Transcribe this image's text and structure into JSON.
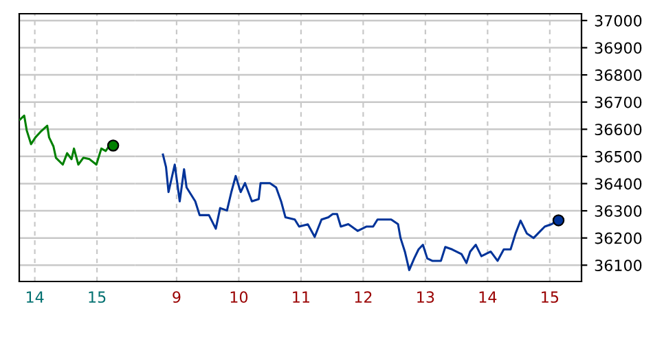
{
  "chart_data": [
    {
      "type": "line",
      "series": [
        {
          "color": "#008000",
          "x": [
            13.76,
            13.83,
            13.87,
            13.94,
            14.01,
            14.09,
            14.2,
            14.23,
            14.3,
            14.34,
            14.45,
            14.52,
            14.59,
            14.63,
            14.7,
            14.78,
            14.88,
            14.99,
            15.07,
            15.14,
            15.2,
            15.26
          ],
          "values": [
            36635,
            36650,
            36596,
            36545,
            36570,
            36590,
            36613,
            36570,
            36537,
            36495,
            36470,
            36512,
            36490,
            36529,
            36470,
            36495,
            36490,
            36470,
            36529,
            36520,
            36540,
            36540
          ]
        },
        {
          "type": "scatter",
          "marker": "circle",
          "color": "#008000",
          "x": [
            15.26
          ],
          "values": [
            36540
          ]
        }
      ],
      "xlim": [
        13.75,
        15.61
      ],
      "xticks": [
        14,
        15
      ],
      "ylim": [
        36040,
        37025
      ],
      "yticks": [
        36100,
        36200,
        36300,
        36400,
        36500,
        36600,
        36700,
        36800,
        36900,
        37000
      ],
      "tick_labels": "x",
      "grid": true,
      "line_style": "solid"
    },
    {
      "type": "line",
      "series": [
        {
          "color": "#003399",
          "x": [
            8.78,
            8.83,
            8.87,
            8.97,
            9.05,
            9.12,
            9.16,
            9.3,
            9.37,
            9.52,
            9.63,
            9.7,
            9.81,
            9.88,
            9.95,
            10.03,
            10.1,
            10.21,
            10.32,
            10.35,
            10.5,
            10.6,
            10.68,
            10.75,
            10.9,
            10.97,
            11.11,
            11.22,
            11.33,
            11.44,
            11.51,
            11.58,
            11.64,
            11.76,
            11.91,
            12.05,
            12.16,
            12.23,
            12.45,
            12.56,
            12.6,
            12.67,
            12.74,
            12.82,
            12.89,
            12.96,
            13.03,
            13.11,
            13.25,
            13.32,
            13.43,
            13.58,
            13.66,
            13.72,
            13.81,
            13.9,
            14.05,
            14.16,
            14.26,
            14.37,
            14.45,
            14.53,
            14.63,
            14.74,
            14.85,
            14.92,
            15.03,
            15.14
          ],
          "values": [
            36507,
            36461,
            36369,
            36470,
            36335,
            36453,
            36386,
            36335,
            36284,
            36284,
            36234,
            36310,
            36301,
            36369,
            36428,
            36369,
            36402,
            36335,
            36343,
            36402,
            36402,
            36386,
            36335,
            36276,
            36268,
            36242,
            36250,
            36204,
            36268,
            36276,
            36288,
            36288,
            36242,
            36251,
            36226,
            36242,
            36242,
            36268,
            36268,
            36251,
            36200,
            36150,
            36082,
            36125,
            36158,
            36175,
            36125,
            36116,
            36116,
            36167,
            36158,
            36141,
            36108,
            36150,
            36175,
            36133,
            36150,
            36116,
            36158,
            36158,
            36217,
            36264,
            36217,
            36200,
            36226,
            36242,
            36251,
            36265
          ]
        },
        {
          "type": "scatter",
          "marker": "circle",
          "color": "#003399",
          "x": [
            15.14
          ],
          "values": [
            36265
          ]
        }
      ],
      "xlim": [
        8.33,
        15.51
      ],
      "xticks": [
        9,
        10,
        11,
        12,
        13,
        14,
        15
      ],
      "ylim": [
        36040,
        37025
      ],
      "yticks": [
        36100,
        36200,
        36300,
        36400,
        36500,
        36600,
        36700,
        36800,
        36900,
        37000
      ],
      "grid": true,
      "line_style": "solid"
    }
  ]
}
